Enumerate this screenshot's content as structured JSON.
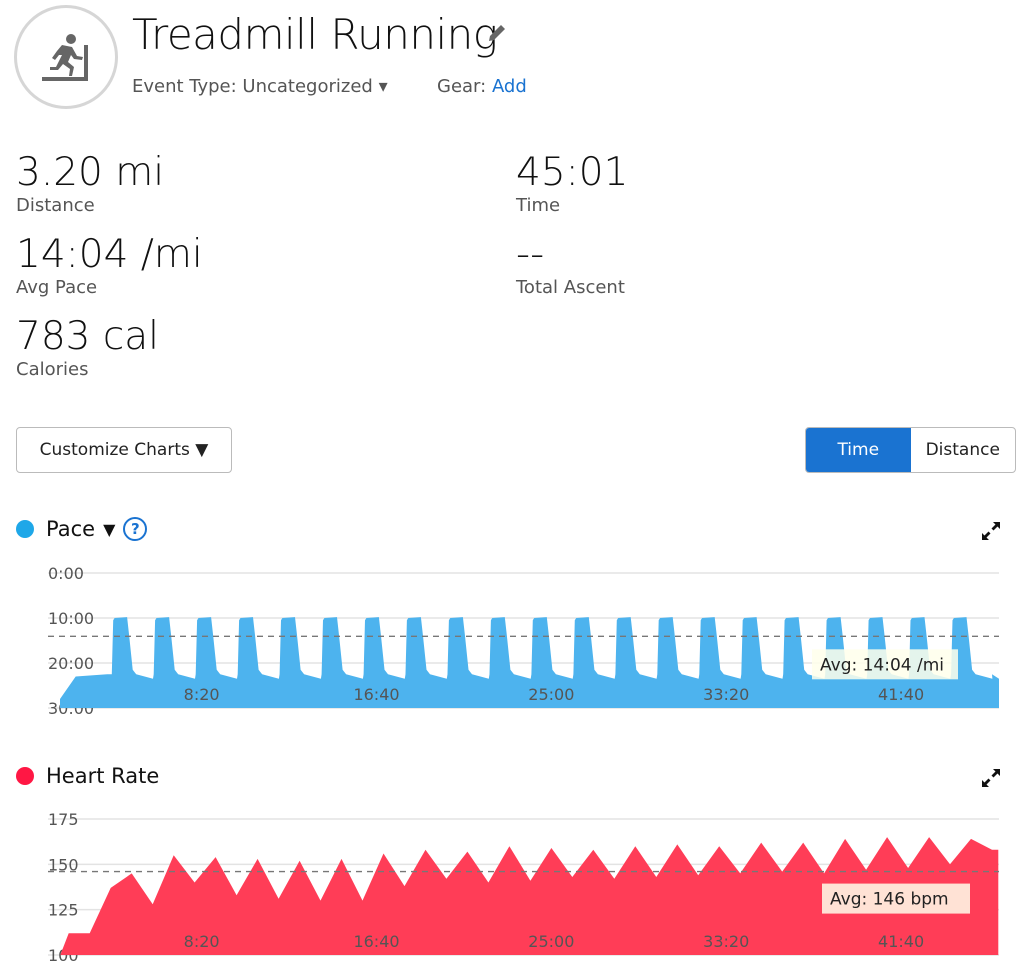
{
  "header": {
    "title": "Treadmill Running",
    "event_type_label": "Event Type: Uncategorized",
    "gear_label": "Gear:",
    "gear_link": "Add"
  },
  "stats": [
    {
      "value": "3.20 mi",
      "label": "Distance"
    },
    {
      "value": "45:01",
      "label": "Time"
    },
    {
      "value": "14:04 /mi",
      "label": "Avg Pace"
    },
    {
      "value": "--",
      "label": "Total Ascent"
    },
    {
      "value": "783 cal",
      "label": "Calories"
    }
  ],
  "controls": {
    "customize": "Customize Charts ▼",
    "time": "Time",
    "distance": "Distance"
  },
  "colors": {
    "pace": "#4db3ee",
    "hr": "#ff3d57",
    "accent": "#1a73d1"
  },
  "chart_data": [
    {
      "type": "area",
      "title": "Pace",
      "unit": "min/mi",
      "y_inverted": true,
      "ylim": [
        0,
        30
      ],
      "yticks": [
        "0:00",
        "10:00",
        "20:00",
        "30:00"
      ],
      "yticks_values": [
        0,
        10,
        20,
        30
      ],
      "xticks": [
        "8:20",
        "16:40",
        "25:00",
        "33:20",
        "41:40"
      ],
      "xticks_values": [
        500,
        1000,
        1500,
        2000,
        2500
      ],
      "xlim_s": [
        95,
        2780
      ],
      "avg": 14.07,
      "avg_label": "Avg: 14:04 /mi",
      "intervals": {
        "first_start_s": 243,
        "period_s": 120,
        "count": 21,
        "work_duration_s": 50,
        "work_pace": 10,
        "recovery_pace": 22.5,
        "start_pace": 28
      }
    },
    {
      "type": "area",
      "title": "Heart Rate",
      "unit": "bpm",
      "ylim": [
        100,
        175
      ],
      "yticks": [
        "175",
        "150",
        "125",
        "100"
      ],
      "yticks_values": [
        175,
        150,
        125,
        100
      ],
      "xticks": [
        "8:20",
        "16:40",
        "25:00",
        "33:20",
        "41:40"
      ],
      "xticks_values": [
        500,
        1000,
        1500,
        2000,
        2500
      ],
      "xlim_s": [
        95,
        2780
      ],
      "avg": 146,
      "avg_label": "Avg: 146 bpm",
      "x_min": [
        1.6,
        2,
        3,
        4,
        5,
        6,
        7,
        8,
        9,
        10,
        11,
        12,
        13,
        14,
        15,
        16,
        17,
        18,
        19,
        20,
        21,
        22,
        23,
        24,
        25,
        26,
        27,
        28,
        29,
        30,
        31,
        32,
        33,
        34,
        35,
        36,
        37,
        38,
        39,
        40,
        41,
        42,
        43,
        44,
        45,
        46,
        46.3
      ],
      "values": [
        100,
        112,
        112,
        137,
        145,
        128,
        155,
        140,
        154,
        133,
        153,
        131,
        152,
        130,
        153,
        130,
        156,
        138,
        158,
        142,
        157,
        140,
        160,
        141,
        159,
        143,
        158,
        142,
        160,
        143,
        161,
        144,
        160,
        145,
        162,
        146,
        162,
        145,
        164,
        147,
        165,
        148,
        165,
        150,
        164,
        158,
        158
      ]
    }
  ]
}
